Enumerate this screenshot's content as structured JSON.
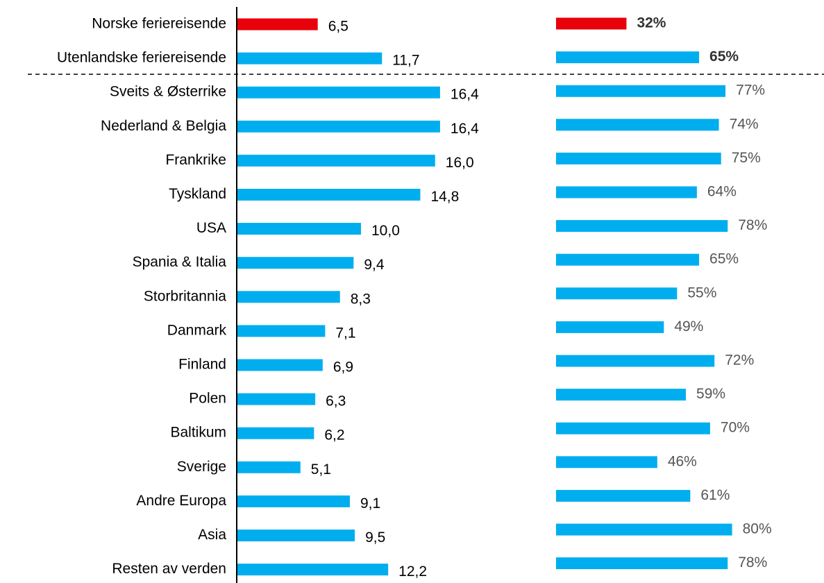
{
  "chart_data": [
    {
      "type": "bar",
      "categories": [
        "Norske feriereisende",
        "Utenlandske feriereisende",
        "Sveits & Østerrike",
        "Nederland & Belgia",
        "Frankrike",
        "Tyskland",
        "USA",
        "Spania & Italia",
        "Storbritannia",
        "Danmark",
        "Finland",
        "Polen",
        "Baltikum",
        "Sverige",
        "Andre Europa",
        "Asia",
        "Resten av verden"
      ],
      "values": [
        6.5,
        11.7,
        16.4,
        16.4,
        16.0,
        14.8,
        10.0,
        9.4,
        8.3,
        7.1,
        6.9,
        6.3,
        6.2,
        5.1,
        9.1,
        9.5,
        12.2
      ],
      "value_labels": [
        "6,5",
        "11,7",
        "16,4",
        "16,4",
        "16,0",
        "14,8",
        "10,0",
        "9,4",
        "8,3",
        "7,1",
        "6,9",
        "6,3",
        "6,2",
        "5,1",
        "9,1",
        "9,5",
        "12,2"
      ],
      "colors": [
        "#e8000b",
        "#00aeef",
        "#00aeef",
        "#00aeef",
        "#00aeef",
        "#00aeef",
        "#00aeef",
        "#00aeef",
        "#00aeef",
        "#00aeef",
        "#00aeef",
        "#00aeef",
        "#00aeef",
        "#00aeef",
        "#00aeef",
        "#00aeef",
        "#00aeef"
      ]
    },
    {
      "type": "bar",
      "values": [
        32,
        65,
        77,
        74,
        75,
        64,
        78,
        65,
        55,
        49,
        72,
        59,
        70,
        46,
        61,
        80,
        78
      ],
      "value_labels": [
        "32%",
        "65%",
        "77%",
        "74%",
        "75%",
        "64%",
        "78%",
        "65%",
        "55%",
        "49%",
        "72%",
        "59%",
        "70%",
        "46%",
        "61%",
        "80%",
        "78%"
      ],
      "colors": [
        "#e8000b",
        "#00aeef",
        "#00aeef",
        "#00aeef",
        "#00aeef",
        "#00aeef",
        "#00aeef",
        "#00aeef",
        "#00aeef",
        "#00aeef",
        "#00aeef",
        "#00aeef",
        "#00aeef",
        "#00aeef",
        "#00aeef",
        "#00aeef",
        "#00aeef"
      ]
    }
  ]
}
